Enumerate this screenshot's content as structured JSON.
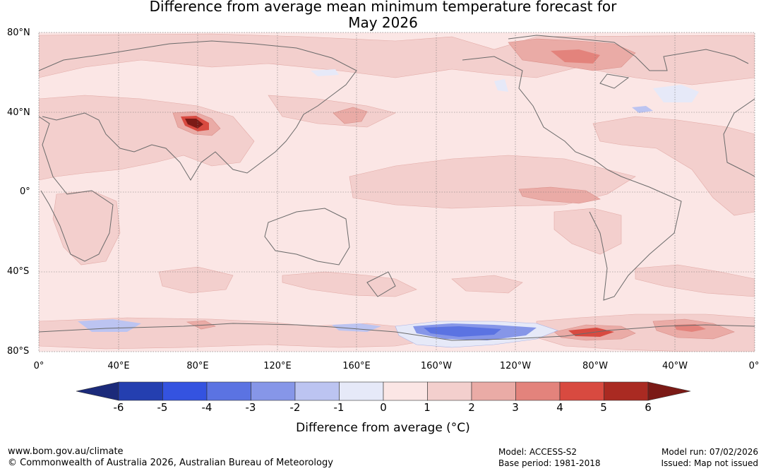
{
  "title": {
    "line1": "Difference from average mean minimum temperature forecast for",
    "line2": "May 2026"
  },
  "map": {
    "lat_labels": [
      "80°N",
      "40°N",
      "0°",
      "40°S",
      "80°S"
    ],
    "lon_labels": [
      "0°",
      "40°E",
      "80°E",
      "120°E",
      "160°E",
      "160°W",
      "120°W",
      "80°W",
      "40°W",
      "0°"
    ]
  },
  "colorbar": {
    "ticks": [
      "-6",
      "-5",
      "-4",
      "-3",
      "-2",
      "-1",
      "0",
      "1",
      "2",
      "3",
      "4",
      "5",
      "6"
    ],
    "colors": [
      "#1b2a7a",
      "#243fb0",
      "#3453e0",
      "#5b73e2",
      "#8696e8",
      "#bcc4f1",
      "#e6e9f8",
      "#fbe6e5",
      "#f3cfcd",
      "#eaaba6",
      "#e3837c",
      "#d84a40",
      "#aa2a22",
      "#7b1a16"
    ],
    "label": "Difference from average (°C)"
  },
  "footer": {
    "url": "www.bom.gov.au/climate",
    "copyright": "© Commonwealth of Australia 2026, Australian Bureau of Meteorology",
    "model": "Model: ACCESS-S2",
    "base_period": "Base period: 1981-2018",
    "model_run": "Model run: 07/02/2026",
    "issued": "Issued: Map not issued"
  }
}
